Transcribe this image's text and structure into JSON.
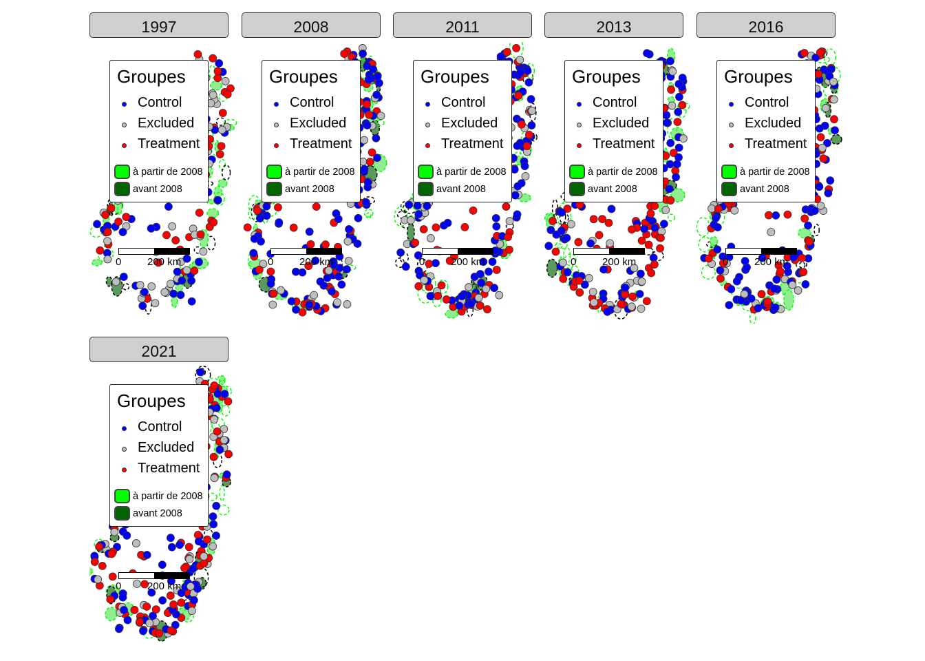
{
  "chart_data": {
    "type": "scatter",
    "subtype": "faceted point map",
    "facets": [
      "1997",
      "2008",
      "2011",
      "2013",
      "2016",
      "2021"
    ],
    "legend": {
      "title": "Groupes",
      "points": [
        {
          "label": "Control",
          "color": "#0000FF"
        },
        {
          "label": "Excluded",
          "color": "#BEBEBE"
        },
        {
          "label": "Treatment",
          "color": "#FF0000"
        }
      ],
      "areas": [
        {
          "label": "à partir de 2008",
          "color": "#00FF00"
        },
        {
          "label": "avant 2008",
          "color": "#006400"
        }
      ],
      "placement": "top-left"
    },
    "scale_bar": {
      "start": "0",
      "end": "200 km"
    },
    "protected_area_outline_color": "#00FF00",
    "protected_area_fill_color": "#90EE90"
  }
}
